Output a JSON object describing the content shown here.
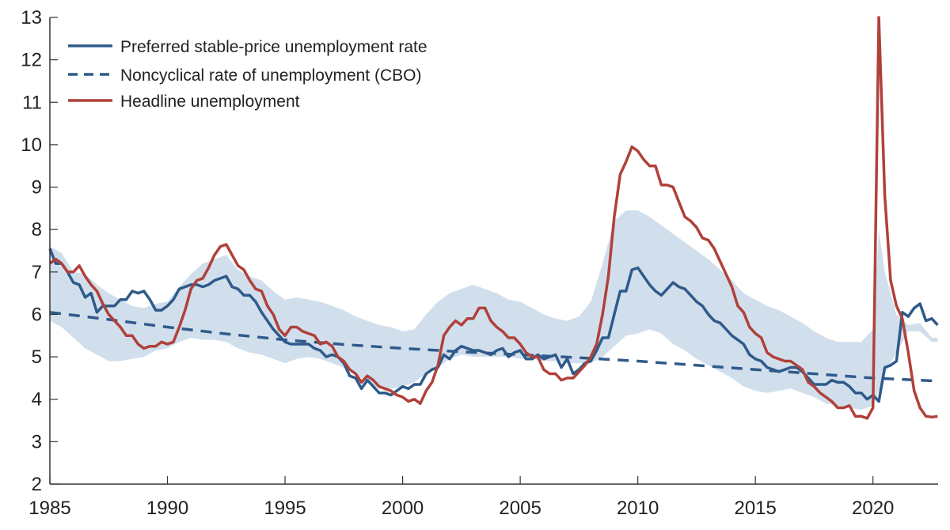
{
  "chart_data": {
    "type": "line",
    "title": "",
    "xlabel": "",
    "ylabel": "",
    "xlim": [
      1985,
      2022.77
    ],
    "ylim": [
      2,
      13
    ],
    "x_ticks": [
      "1985",
      "1990",
      "1995",
      "2000",
      "2005",
      "2010",
      "2015",
      "2020"
    ],
    "y_ticks": [
      "2",
      "3",
      "4",
      "5",
      "6",
      "7",
      "8",
      "9",
      "10",
      "11",
      "12",
      "13"
    ],
    "grid": false,
    "legend_position": "top-left",
    "colors": {
      "preferred": "#2f5a8a",
      "cbo": "#2f5a8a",
      "headline": "#b0413a",
      "band": "#d1dfed"
    },
    "series": [
      {
        "name": "Preferred stable-price unemployment rate",
        "style": "solid",
        "x": [
          1985,
          1985.25,
          1985.5,
          1985.75,
          1986,
          1986.25,
          1986.5,
          1986.75,
          1987,
          1987.25,
          1987.5,
          1987.75,
          1988,
          1988.25,
          1988.5,
          1988.75,
          1989,
          1989.25,
          1989.5,
          1989.75,
          1990,
          1990.25,
          1990.5,
          1990.75,
          1991,
          1991.25,
          1991.5,
          1991.75,
          1992,
          1992.25,
          1992.5,
          1992.75,
          1993,
          1993.25,
          1993.5,
          1993.75,
          1994,
          1994.25,
          1994.5,
          1994.75,
          1995,
          1995.25,
          1995.5,
          1995.75,
          1996,
          1996.25,
          1996.5,
          1996.75,
          1997,
          1997.25,
          1997.5,
          1997.75,
          1998,
          1998.25,
          1998.5,
          1998.75,
          1999,
          1999.25,
          1999.5,
          1999.75,
          2000,
          2000.25,
          2000.5,
          2000.75,
          2001,
          2001.25,
          2001.5,
          2001.75,
          2002,
          2002.25,
          2002.5,
          2002.75,
          2003,
          2003.25,
          2003.5,
          2003.75,
          2004,
          2004.25,
          2004.5,
          2004.75,
          2005,
          2005.25,
          2005.5,
          2005.75,
          2006,
          2006.25,
          2006.5,
          2006.75,
          2007,
          2007.25,
          2007.5,
          2007.75,
          2008,
          2008.25,
          2008.5,
          2008.75,
          2009,
          2009.25,
          2009.5,
          2009.75,
          2010,
          2010.25,
          2010.5,
          2010.75,
          2011,
          2011.25,
          2011.5,
          2011.75,
          2012,
          2012.25,
          2012.5,
          2012.75,
          2013,
          2013.25,
          2013.5,
          2013.75,
          2014,
          2014.25,
          2014.5,
          2014.75,
          2015,
          2015.25,
          2015.5,
          2015.75,
          2016,
          2016.25,
          2016.5,
          2016.75,
          2017,
          2017.25,
          2017.5,
          2017.75,
          2018,
          2018.25,
          2018.5,
          2018.75,
          2019,
          2019.25,
          2019.5,
          2019.75,
          2020,
          2020.25,
          2020.5,
          2020.75,
          2021,
          2021.25,
          2021.5,
          2021.75,
          2022,
          2022.25,
          2022.5,
          2022.75
        ],
        "y": [
          7.55,
          7.2,
          7.2,
          7.0,
          6.75,
          6.7,
          6.4,
          6.5,
          6.05,
          6.2,
          6.2,
          6.2,
          6.35,
          6.35,
          6.55,
          6.5,
          6.55,
          6.35,
          6.1,
          6.1,
          6.2,
          6.35,
          6.6,
          6.65,
          6.7,
          6.7,
          6.65,
          6.7,
          6.8,
          6.85,
          6.9,
          6.65,
          6.6,
          6.45,
          6.45,
          6.3,
          6.05,
          5.85,
          5.65,
          5.5,
          5.35,
          5.3,
          5.3,
          5.3,
          5.3,
          5.2,
          5.15,
          5.0,
          5.05,
          5.0,
          4.85,
          4.55,
          4.5,
          4.25,
          4.45,
          4.3,
          4.15,
          4.15,
          4.1,
          4.2,
          4.3,
          4.25,
          4.35,
          4.35,
          4.6,
          4.7,
          4.75,
          5.05,
          4.95,
          5.15,
          5.25,
          5.2,
          5.15,
          5.15,
          5.1,
          5.05,
          5.15,
          5.2,
          5.0,
          5.1,
          5.15,
          4.95,
          4.95,
          5.05,
          4.95,
          5.0,
          5.05,
          4.75,
          4.95,
          4.6,
          4.7,
          4.85,
          4.9,
          5.15,
          5.45,
          5.45,
          6.0,
          6.55,
          6.55,
          7.05,
          7.1,
          6.9,
          6.7,
          6.55,
          6.45,
          6.6,
          6.75,
          6.65,
          6.6,
          6.45,
          6.3,
          6.2,
          6.0,
          5.85,
          5.8,
          5.65,
          5.5,
          5.4,
          5.3,
          5.05,
          4.95,
          4.9,
          4.75,
          4.7,
          4.65,
          4.7,
          4.75,
          4.75,
          4.65,
          4.5,
          4.35,
          4.35,
          4.35,
          4.45,
          4.4,
          4.4,
          4.3,
          4.15,
          4.15,
          4.0,
          4.1,
          3.95,
          4.75,
          4.8,
          4.9,
          6.05,
          5.95,
          6.15,
          6.25,
          5.85,
          5.9,
          5.75
        ]
      },
      {
        "name": "Noncyclical rate of unemployment (CBO)",
        "style": "dashed",
        "x": [
          1985,
          1987.5,
          1990,
          1992.5,
          1995,
          1997.5,
          2000,
          2002.5,
          2005,
          2007.5,
          2010,
          2012.5,
          2015,
          2017.5,
          2020,
          2022.77
        ],
        "y": [
          6.05,
          5.88,
          5.7,
          5.54,
          5.4,
          5.29,
          5.2,
          5.12,
          5.05,
          4.98,
          4.9,
          4.8,
          4.7,
          4.6,
          4.5,
          4.43
        ]
      },
      {
        "name": "Headline unemployment",
        "style": "solid",
        "x": [
          1985,
          1985.25,
          1985.5,
          1985.75,
          1986,
          1986.25,
          1986.5,
          1986.75,
          1987,
          1987.25,
          1987.5,
          1987.75,
          1988,
          1988.25,
          1988.5,
          1988.75,
          1989,
          1989.25,
          1989.5,
          1989.75,
          1990,
          1990.25,
          1990.5,
          1990.75,
          1991,
          1991.25,
          1991.5,
          1991.75,
          1992,
          1992.25,
          1992.5,
          1992.75,
          1993,
          1993.25,
          1993.5,
          1993.75,
          1994,
          1994.25,
          1994.5,
          1994.75,
          1995,
          1995.25,
          1995.5,
          1995.75,
          1996,
          1996.25,
          1996.5,
          1996.75,
          1997,
          1997.25,
          1997.5,
          1997.75,
          1998,
          1998.25,
          1998.5,
          1998.75,
          1999,
          1999.25,
          1999.5,
          1999.75,
          2000,
          2000.25,
          2000.5,
          2000.75,
          2001,
          2001.25,
          2001.5,
          2001.75,
          2002,
          2002.25,
          2002.5,
          2002.75,
          2003,
          2003.25,
          2003.5,
          2003.75,
          2004,
          2004.25,
          2004.5,
          2004.75,
          2005,
          2005.25,
          2005.5,
          2005.75,
          2006,
          2006.25,
          2006.5,
          2006.75,
          2007,
          2007.25,
          2007.5,
          2007.75,
          2008,
          2008.25,
          2008.5,
          2008.75,
          2009,
          2009.25,
          2009.5,
          2009.75,
          2010,
          2010.25,
          2010.5,
          2010.75,
          2011,
          2011.25,
          2011.5,
          2011.75,
          2012,
          2012.25,
          2012.5,
          2012.75,
          2013,
          2013.25,
          2013.5,
          2013.75,
          2014,
          2014.25,
          2014.5,
          2014.75,
          2015,
          2015.25,
          2015.5,
          2015.75,
          2016,
          2016.25,
          2016.5,
          2016.75,
          2017,
          2017.25,
          2017.5,
          2017.75,
          2018,
          2018.25,
          2018.5,
          2018.75,
          2019,
          2019.25,
          2019.5,
          2019.75,
          2020,
          2020.25,
          2020.5,
          2020.75,
          2021,
          2021.25,
          2021.5,
          2021.75,
          2022,
          2022.25,
          2022.5,
          2022.75
        ],
        "y": [
          7.2,
          7.3,
          7.2,
          7.0,
          7.0,
          7.15,
          6.9,
          6.7,
          6.55,
          6.25,
          6.0,
          5.85,
          5.7,
          5.5,
          5.5,
          5.3,
          5.2,
          5.25,
          5.25,
          5.35,
          5.3,
          5.35,
          5.7,
          6.1,
          6.6,
          6.8,
          6.85,
          7.1,
          7.4,
          7.6,
          7.65,
          7.4,
          7.15,
          7.05,
          6.8,
          6.6,
          6.55,
          6.2,
          6.0,
          5.65,
          5.5,
          5.7,
          5.7,
          5.6,
          5.55,
          5.5,
          5.3,
          5.35,
          5.25,
          5.0,
          4.9,
          4.7,
          4.6,
          4.4,
          4.55,
          4.45,
          4.3,
          4.25,
          4.2,
          4.1,
          4.05,
          3.95,
          4.0,
          3.9,
          4.2,
          4.4,
          4.8,
          5.5,
          5.7,
          5.85,
          5.75,
          5.9,
          5.9,
          6.15,
          6.15,
          5.85,
          5.7,
          5.6,
          5.45,
          5.45,
          5.3,
          5.1,
          5.0,
          5.0,
          4.7,
          4.6,
          4.6,
          4.45,
          4.5,
          4.5,
          4.65,
          4.8,
          5.0,
          5.3,
          6.0,
          6.9,
          8.3,
          9.3,
          9.6,
          9.95,
          9.85,
          9.65,
          9.5,
          9.5,
          9.05,
          9.05,
          9.0,
          8.65,
          8.3,
          8.2,
          8.05,
          7.8,
          7.75,
          7.55,
          7.25,
          6.95,
          6.65,
          6.2,
          6.05,
          5.7,
          5.55,
          5.45,
          5.1,
          5.0,
          4.95,
          4.9,
          4.9,
          4.8,
          4.7,
          4.4,
          4.3,
          4.15,
          4.05,
          3.95,
          3.8,
          3.8,
          3.85,
          3.6,
          3.6,
          3.55,
          3.8,
          13.0,
          8.8,
          6.8,
          6.2,
          5.9,
          5.1,
          4.2,
          3.8,
          3.6,
          3.58,
          3.6
        ]
      }
    ],
    "band": {
      "x": [
        1985,
        1985.5,
        1986,
        1986.5,
        1987,
        1987.5,
        1988,
        1988.5,
        1989,
        1989.5,
        1990,
        1990.5,
        1991,
        1991.5,
        1992,
        1992.5,
        1993,
        1993.5,
        1994,
        1994.5,
        1995,
        1995.5,
        1996,
        1996.5,
        1997,
        1997.5,
        1998,
        1998.5,
        1999,
        1999.5,
        2000,
        2000.5,
        2001,
        2001.5,
        2002,
        2002.5,
        2003,
        2003.5,
        2004,
        2004.5,
        2005,
        2005.5,
        2006,
        2006.5,
        2007,
        2007.5,
        2008,
        2008.5,
        2009,
        2009.5,
        2010,
        2010.5,
        2011,
        2011.5,
        2012,
        2012.5,
        2013,
        2013.5,
        2014,
        2014.5,
        2015,
        2015.5,
        2016,
        2016.5,
        2017,
        2017.5,
        2018,
        2018.5,
        2019,
        2019.5,
        2020,
        2020.25,
        2020.5,
        2021,
        2021.5,
        2022,
        2022.5,
        2022.75
      ],
      "upper": [
        7.6,
        7.45,
        7.0,
        6.95,
        6.7,
        6.5,
        6.35,
        6.2,
        6.15,
        6.25,
        6.3,
        6.65,
        6.95,
        7.2,
        7.3,
        7.4,
        7.05,
        6.9,
        6.8,
        6.55,
        6.35,
        6.4,
        6.35,
        6.3,
        6.2,
        6.1,
        5.95,
        5.85,
        5.75,
        5.7,
        5.6,
        5.65,
        6.0,
        6.3,
        6.5,
        6.6,
        6.7,
        6.6,
        6.5,
        6.35,
        6.3,
        6.15,
        6.0,
        5.9,
        5.85,
        5.95,
        6.3,
        7.2,
        8.2,
        8.45,
        8.45,
        8.3,
        8.1,
        7.9,
        7.7,
        7.5,
        7.3,
        7.05,
        6.8,
        6.5,
        6.35,
        6.2,
        6.1,
        5.95,
        5.8,
        5.6,
        5.45,
        5.35,
        5.35,
        5.35,
        5.65,
        8.0,
        7.0,
        6.0,
        5.75,
        5.8,
        5.45,
        5.45
      ],
      "lower": [
        5.85,
        5.7,
        5.45,
        5.2,
        5.05,
        4.9,
        4.9,
        4.95,
        5.0,
        5.15,
        5.2,
        5.35,
        5.45,
        5.4,
        5.4,
        5.35,
        5.2,
        5.1,
        5.05,
        4.95,
        4.85,
        4.95,
        5.0,
        4.95,
        4.85,
        4.75,
        4.6,
        4.4,
        4.25,
        4.25,
        4.3,
        4.4,
        4.6,
        4.75,
        4.95,
        5.05,
        5.0,
        5.0,
        5.0,
        5.0,
        4.95,
        4.95,
        4.9,
        4.9,
        4.85,
        4.85,
        4.85,
        5.0,
        5.25,
        5.5,
        5.55,
        5.65,
        5.55,
        5.3,
        5.15,
        4.95,
        4.8,
        4.65,
        4.5,
        4.3,
        4.2,
        4.15,
        4.2,
        4.25,
        4.15,
        4.05,
        3.9,
        3.85,
        3.8,
        3.75,
        3.85,
        4.2,
        4.6,
        5.1,
        5.6,
        5.6,
        5.35,
        5.35
      ]
    }
  }
}
